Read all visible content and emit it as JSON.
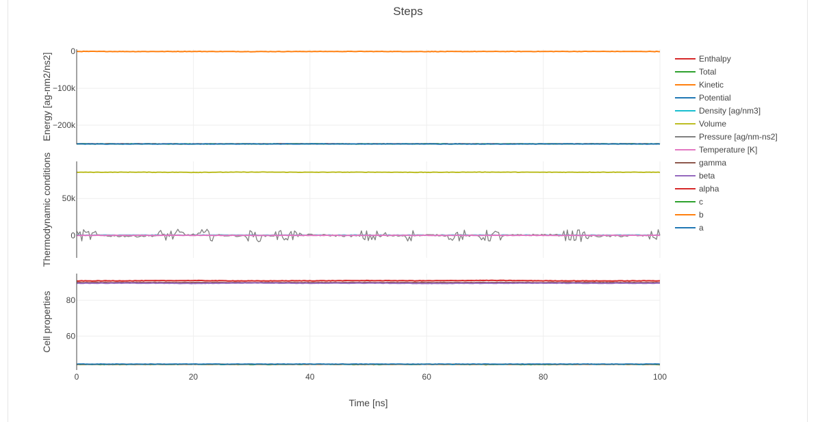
{
  "chart_data": {
    "type": "line",
    "title": "Steps",
    "xlabel": "Time [ns]",
    "x_range": [
      0,
      100
    ],
    "x_ticks": [
      0,
      20,
      40,
      60,
      80,
      100
    ],
    "grid": true,
    "legend_placement": "right",
    "subplots": [
      {
        "ylabel": "Energy [ag-nm2/ns2]",
        "y_range": [
          -252000,
          6000
        ],
        "y_ticks": [
          {
            "value": 0,
            "label": "0"
          },
          {
            "value": -100000,
            "label": "−100k"
          },
          {
            "value": -200000,
            "label": "−200k"
          }
        ],
        "series": [
          {
            "name": "Enthalpy",
            "color": "#d62728",
            "values": [
              -250800,
              -250700,
              -250900,
              -250800,
              -250600,
              -250800,
              -250700,
              -250900,
              -250800,
              -250700,
              -250800
            ]
          },
          {
            "name": "Total",
            "color": "#2ca02c",
            "values": [
              -250900,
              -250800,
              -251000,
              -250900,
              -250700,
              -250900,
              -250800,
              -251000,
              -250900,
              -250800,
              -250900
            ]
          },
          {
            "name": "Kinetic",
            "color": "#ff7f0e",
            "values": [
              100,
              -200,
              0,
              -300,
              -100,
              0,
              -200,
              -100,
              0,
              100,
              -100
            ]
          },
          {
            "name": "Potential",
            "color": "#1f77b4",
            "values": [
              -251000,
              -250900,
              -251100,
              -251000,
              -250800,
              -251000,
              -250900,
              -251100,
              -251000,
              -250900,
              -251000
            ]
          }
        ]
      },
      {
        "ylabel": "Thermodynamic conditions",
        "y_range": [
          -30000,
          100000
        ],
        "y_ticks": [
          {
            "value": 0,
            "label": "0"
          },
          {
            "value": 50000,
            "label": "50k"
          }
        ],
        "series": [
          {
            "name": "Density [ag/nm3]",
            "color": "#17becf",
            "values": [
              600,
              600,
              600,
              600,
              600,
              600,
              600,
              600,
              600,
              600,
              600
            ]
          },
          {
            "name": "Volume",
            "color": "#bcbd22",
            "values": [
              85400,
              85500,
              85300,
              85600,
              85400,
              85500,
              85300,
              85600,
              85400,
              85500,
              85400
            ]
          },
          {
            "name": "Pressure [ag/nm-ns2]",
            "color": "#7f7f7f",
            "values": [
              500,
              -800,
              1200,
              -600,
              900,
              -1000,
              700,
              -400,
              1100,
              -900,
              300
            ]
          },
          {
            "name": "Temperature [K]",
            "color": "#e377c2",
            "values": [
              300,
              300,
              300,
              300,
              300,
              300,
              300,
              300,
              300,
              300,
              300
            ]
          }
        ]
      },
      {
        "ylabel": "Cell properties",
        "y_range": [
          41,
          95
        ],
        "y_ticks": [
          {
            "value": 60,
            "label": "60"
          },
          {
            "value": 80,
            "label": "80"
          }
        ],
        "series": [
          {
            "name": "gamma",
            "color": "#8c564b",
            "values": [
              90,
              90,
              90,
              90,
              90,
              90,
              90,
              90,
              90,
              90,
              90
            ]
          },
          {
            "name": "beta",
            "color": "#9467bd",
            "values": [
              89.6,
              89.7,
              89.5,
              89.8,
              89.6,
              89.7,
              89.5,
              89.6,
              89.7,
              89.6,
              89.6
            ]
          },
          {
            "name": "alpha",
            "color": "#d62728",
            "values": [
              90.9,
              91.0,
              91.1,
              90.9,
              91.0,
              91.1,
              91.0,
              91.2,
              91.0,
              90.9,
              91.0
            ]
          },
          {
            "name": "c",
            "color": "#2ca02c",
            "values": [
              44.1,
              44.1,
              44.2,
              44.1,
              44.2,
              44.1,
              44.2,
              44.1,
              44.1,
              44.2,
              44.1
            ]
          },
          {
            "name": "b",
            "color": "#ff7f0e",
            "values": [
              44.2,
              44.2,
              44.2,
              44.2,
              44.2,
              44.2,
              44.2,
              44.2,
              44.2,
              44.2,
              44.2
            ]
          },
          {
            "name": "a",
            "color": "#1f77b4",
            "values": [
              44.3,
              44.3,
              44.3,
              44.3,
              44.3,
              44.3,
              44.3,
              44.3,
              44.3,
              44.3,
              44.3
            ]
          }
        ]
      }
    ],
    "legend": [
      "Enthalpy",
      "Total",
      "Kinetic",
      "Potential",
      "Density [ag/nm3]",
      "Volume",
      "Pressure [ag/nm-ns2]",
      "Temperature [K]",
      "gamma",
      "beta",
      "alpha",
      "c",
      "b",
      "a"
    ],
    "legend_colors": [
      "#d62728",
      "#2ca02c",
      "#ff7f0e",
      "#1f77b4",
      "#17becf",
      "#bcbd22",
      "#7f7f7f",
      "#e377c2",
      "#8c564b",
      "#9467bd",
      "#d62728",
      "#2ca02c",
      "#ff7f0e",
      "#1f77b4"
    ]
  }
}
